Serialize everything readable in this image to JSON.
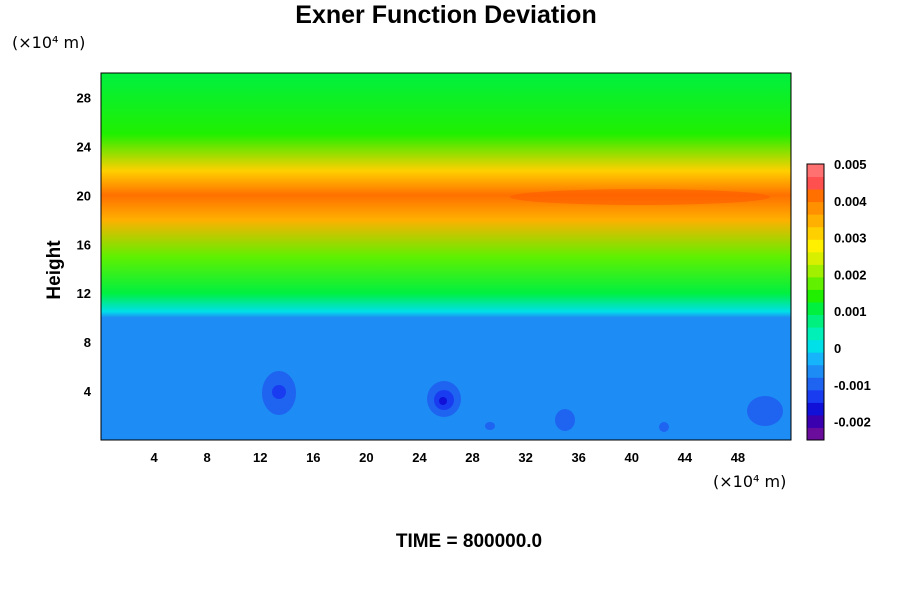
{
  "chart_data": {
    "type": "heatmap",
    "title": "Exner Function Deviation",
    "ylabel": "Height",
    "x_units": "(×10⁴ m)",
    "y_units": "(×10⁴ m)",
    "xlim": [
      0,
      52
    ],
    "ylim": [
      0,
      30
    ],
    "x_ticks": [
      "4",
      "8",
      "12",
      "16",
      "20",
      "24",
      "28",
      "32",
      "36",
      "40",
      "44",
      "48"
    ],
    "y_ticks": [
      "4",
      "8",
      "12",
      "16",
      "20",
      "24",
      "28"
    ],
    "colorbar": {
      "range": [
        -0.0025,
        0.005
      ],
      "ticks": [
        "0.005",
        "0.004",
        "0.003",
        "0.002",
        "0.001",
        "0",
        "-0.001",
        "-0.002"
      ],
      "colors": [
        "#6a0d9c",
        "#3a00b0",
        "#1010d8",
        "#1a3cf0",
        "#1e64f0",
        "#1e8cf5",
        "#16b4fa",
        "#00e0e8",
        "#00f0b8",
        "#00f080",
        "#00f040",
        "#20f000",
        "#60f000",
        "#a0f000",
        "#d8f000",
        "#fff000",
        "#ffd000",
        "#ffb000",
        "#ff9000",
        "#ff7000",
        "#ff5050",
        "#ff7070"
      ]
    },
    "vertical_profile": [
      {
        "height": 0,
        "value": -0.0005
      },
      {
        "height": 10,
        "value": -0.0005
      },
      {
        "height": 10.5,
        "value": 0.0002
      },
      {
        "height": 12,
        "value": 0.001
      },
      {
        "height": 15,
        "value": 0.0018
      },
      {
        "height": 18,
        "value": 0.0033
      },
      {
        "height": 20,
        "value": 0.0043
      },
      {
        "height": 22,
        "value": 0.0031
      },
      {
        "height": 25,
        "value": 0.0015
      },
      {
        "height": 30,
        "value": 0.0011
      }
    ],
    "time_label": "TIME = 800000.0"
  }
}
